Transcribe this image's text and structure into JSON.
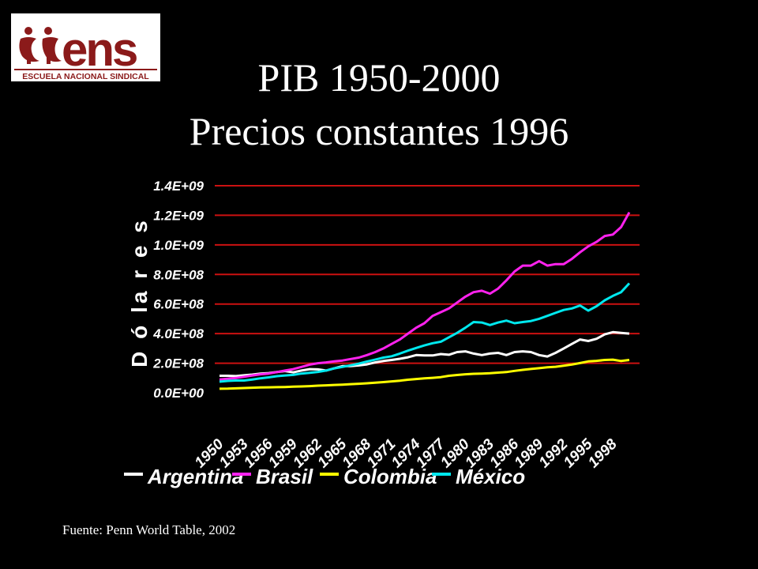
{
  "logo": {
    "text": "ens",
    "subtitle": "ESCUELA NACIONAL SINDICAL",
    "color": "#8b1a1a"
  },
  "title_line1": "PIB 1950-2000",
  "title_line2": "Precios constantes 1996",
  "source": "Fuente: Penn World Table, 2002",
  "chart_data": {
    "type": "line",
    "ylabel": "D ó la r e s",
    "ylim": [
      0,
      1400000000
    ],
    "y_ticks": [
      "0.0E+00",
      "2.0E+08",
      "4.0E+08",
      "6.0E+08",
      "8.0E+08",
      "1.0E+09",
      "1.2E+09",
      "1.4E+09"
    ],
    "x_tick_labels": [
      "1950",
      "1953",
      "1956",
      "1959",
      "1962",
      "1965",
      "1968",
      "1971",
      "1974",
      "1977",
      "1980",
      "1983",
      "1986",
      "1989",
      "1992",
      "1995",
      "1998"
    ],
    "x": [
      1950,
      1951,
      1952,
      1953,
      1954,
      1955,
      1956,
      1957,
      1958,
      1959,
      1960,
      1961,
      1962,
      1963,
      1964,
      1965,
      1966,
      1967,
      1968,
      1969,
      1970,
      1971,
      1972,
      1973,
      1974,
      1975,
      1976,
      1977,
      1978,
      1979,
      1980,
      1981,
      1982,
      1983,
      1984,
      1985,
      1986,
      1987,
      1988,
      1989,
      1990,
      1991,
      1992,
      1993,
      1994,
      1995,
      1996,
      1997,
      1998,
      1999,
      2000
    ],
    "grid": true,
    "legend_position": "bottom",
    "series": [
      {
        "name": "Argentina",
        "color": "#ffffff",
        "values": [
          115000000,
          115000000,
          113000000,
          118000000,
          123000000,
          130000000,
          133000000,
          140000000,
          147000000,
          138000000,
          150000000,
          160000000,
          158000000,
          150000000,
          165000000,
          180000000,
          180000000,
          185000000,
          192000000,
          205000000,
          215000000,
          222000000,
          230000000,
          240000000,
          255000000,
          253000000,
          252000000,
          262000000,
          257000000,
          275000000,
          280000000,
          265000000,
          255000000,
          265000000,
          270000000,
          255000000,
          275000000,
          280000000,
          275000000,
          255000000,
          245000000,
          270000000,
          300000000,
          330000000,
          360000000,
          350000000,
          365000000,
          395000000,
          410000000,
          405000000,
          400000000
        ]
      },
      {
        "name": "Brasil",
        "color": "#ff22ee",
        "values": [
          90000000,
          95000000,
          100000000,
          108000000,
          117000000,
          125000000,
          130000000,
          140000000,
          150000000,
          160000000,
          175000000,
          190000000,
          200000000,
          205000000,
          212000000,
          218000000,
          228000000,
          238000000,
          255000000,
          275000000,
          300000000,
          330000000,
          360000000,
          400000000,
          440000000,
          470000000,
          520000000,
          545000000,
          570000000,
          610000000,
          650000000,
          680000000,
          690000000,
          670000000,
          705000000,
          760000000,
          820000000,
          860000000,
          860000000,
          890000000,
          860000000,
          870000000,
          870000000,
          905000000,
          950000000,
          990000000,
          1020000000,
          1060000000,
          1070000000,
          1120000000,
          1220000000
        ]
      },
      {
        "name": "Colombia",
        "color": "#ffff00",
        "values": [
          27000000,
          28000000,
          30000000,
          32000000,
          34000000,
          36000000,
          37000000,
          38000000,
          39000000,
          41000000,
          43000000,
          45000000,
          48000000,
          50000000,
          53000000,
          55000000,
          58000000,
          61000000,
          64000000,
          68000000,
          72000000,
          77000000,
          82000000,
          88000000,
          93000000,
          97000000,
          101000000,
          106000000,
          115000000,
          120000000,
          125000000,
          128000000,
          130000000,
          132000000,
          136000000,
          140000000,
          148000000,
          155000000,
          161000000,
          166000000,
          172000000,
          176000000,
          183000000,
          191000000,
          201000000,
          212000000,
          216000000,
          222000000,
          224000000,
          215000000,
          222000000
        ]
      },
      {
        "name": "México",
        "color": "#00e8ee",
        "values": [
          75000000,
          80000000,
          83000000,
          83000000,
          90000000,
          98000000,
          104000000,
          112000000,
          117000000,
          121000000,
          130000000,
          135000000,
          141000000,
          150000000,
          165000000,
          175000000,
          186000000,
          197000000,
          211000000,
          224000000,
          238000000,
          247000000,
          265000000,
          285000000,
          303000000,
          320000000,
          335000000,
          345000000,
          375000000,
          405000000,
          440000000,
          478000000,
          475000000,
          458000000,
          475000000,
          488000000,
          470000000,
          478000000,
          485000000,
          500000000,
          520000000,
          540000000,
          560000000,
          570000000,
          590000000,
          555000000,
          585000000,
          625000000,
          655000000,
          680000000,
          740000000
        ]
      }
    ]
  }
}
